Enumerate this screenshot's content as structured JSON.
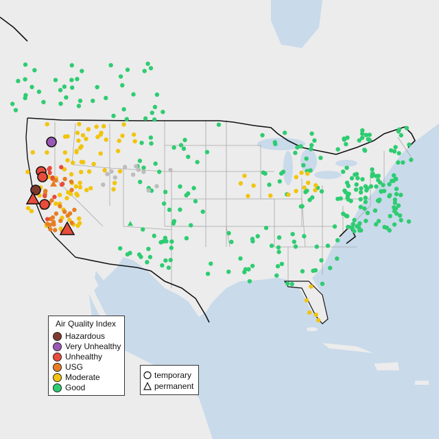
{
  "legend": {
    "title": "Air Quality Index",
    "categories": [
      {
        "label": "Hazardous",
        "color": "#7e3a2e"
      },
      {
        "label": "Very Unhealthy",
        "color": "#9b59b6"
      },
      {
        "label": "Unhealthy",
        "color": "#e74c3c"
      },
      {
        "label": "USG",
        "color": "#e67e22"
      },
      {
        "label": "Moderate",
        "color": "#f1c40f"
      },
      {
        "label": "Good",
        "color": "#2ecc71"
      }
    ]
  },
  "type_legend": {
    "temporary": "temporary",
    "permanent": "permanent"
  },
  "colors": {
    "water": "#c9daea",
    "land": "#ececec",
    "state_border": "#a8a8a8",
    "country_border": "#111111",
    "no_data": "#bdbdbd"
  }
}
